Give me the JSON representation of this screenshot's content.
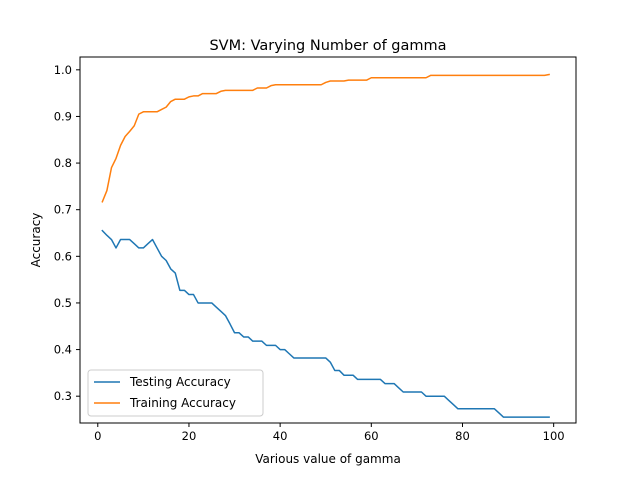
{
  "chart_data": {
    "type": "line",
    "title": "SVM: Varying Number of gamma",
    "xlabel": "Various value of gamma",
    "ylabel": "Accuracy",
    "xlim": [
      -3.9,
      104.9
    ],
    "ylim": [
      0.2425,
      1.0275
    ],
    "xticks": [
      0,
      20,
      40,
      60,
      80,
      100
    ],
    "yticks": [
      0.3,
      0.4,
      0.5,
      0.6,
      0.7,
      0.8,
      0.9,
      1.0
    ],
    "xtick_labels": [
      "0",
      "20",
      "40",
      "60",
      "80",
      "100"
    ],
    "ytick_labels": [
      "0.3",
      "0.4",
      "0.5",
      "0.6",
      "0.7",
      "0.8",
      "0.9",
      "1.0"
    ],
    "grid": false,
    "legend_position": "lower-left",
    "series": [
      {
        "name": "Testing Accuracy",
        "color": "#1f77b4",
        "x": [
          1,
          2,
          3,
          4,
          5,
          6,
          7,
          8,
          9,
          10,
          11,
          12,
          13,
          14,
          15,
          16,
          17,
          18,
          19,
          20,
          21,
          22,
          23,
          24,
          25,
          26,
          27,
          28,
          29,
          30,
          31,
          32,
          33,
          34,
          35,
          36,
          37,
          38,
          39,
          40,
          41,
          42,
          43,
          44,
          45,
          46,
          47,
          48,
          49,
          50,
          51,
          52,
          53,
          54,
          55,
          56,
          57,
          58,
          59,
          60,
          61,
          62,
          63,
          64,
          65,
          66,
          67,
          68,
          69,
          70,
          71,
          72,
          73,
          74,
          75,
          76,
          77,
          78,
          79,
          80,
          81,
          82,
          83,
          84,
          85,
          86,
          87,
          88,
          89,
          90,
          91,
          92,
          93,
          94,
          95,
          96,
          97,
          98,
          99
        ],
        "values": [
          0.655,
          0.645,
          0.636,
          0.618,
          0.636,
          0.636,
          0.636,
          0.627,
          0.618,
          0.618,
          0.627,
          0.636,
          0.618,
          0.6,
          0.591,
          0.573,
          0.564,
          0.527,
          0.527,
          0.518,
          0.518,
          0.5,
          0.5,
          0.5,
          0.5,
          0.491,
          0.482,
          0.473,
          0.455,
          0.436,
          0.436,
          0.427,
          0.427,
          0.418,
          0.418,
          0.418,
          0.409,
          0.409,
          0.409,
          0.4,
          0.4,
          0.391,
          0.382,
          0.382,
          0.382,
          0.382,
          0.382,
          0.382,
          0.382,
          0.382,
          0.373,
          0.355,
          0.355,
          0.345,
          0.345,
          0.345,
          0.336,
          0.336,
          0.336,
          0.336,
          0.336,
          0.336,
          0.327,
          0.327,
          0.327,
          0.318,
          0.309,
          0.309,
          0.309,
          0.309,
          0.309,
          0.3,
          0.3,
          0.3,
          0.3,
          0.3,
          0.291,
          0.282,
          0.273,
          0.273,
          0.273,
          0.273,
          0.273,
          0.273,
          0.273,
          0.273,
          0.273,
          0.264,
          0.255,
          0.255,
          0.255,
          0.255,
          0.255,
          0.255,
          0.255,
          0.255,
          0.255,
          0.255,
          0.255
        ]
      },
      {
        "name": "Training Accuracy",
        "color": "#ff7f0e",
        "x": [
          1,
          2,
          3,
          4,
          5,
          6,
          7,
          8,
          9,
          10,
          11,
          12,
          13,
          14,
          15,
          16,
          17,
          18,
          19,
          20,
          21,
          22,
          23,
          24,
          25,
          26,
          27,
          28,
          29,
          30,
          31,
          32,
          33,
          34,
          35,
          36,
          37,
          38,
          39,
          40,
          41,
          42,
          43,
          44,
          45,
          46,
          47,
          48,
          49,
          50,
          51,
          52,
          53,
          54,
          55,
          56,
          57,
          58,
          59,
          60,
          61,
          62,
          63,
          64,
          65,
          66,
          67,
          68,
          69,
          70,
          71,
          72,
          73,
          74,
          75,
          76,
          77,
          78,
          79,
          80,
          81,
          82,
          83,
          84,
          85,
          86,
          87,
          88,
          89,
          90,
          91,
          92,
          93,
          94,
          95,
          96,
          97,
          98,
          99
        ],
        "values": [
          0.717,
          0.741,
          0.79,
          0.81,
          0.838,
          0.857,
          0.868,
          0.88,
          0.905,
          0.91,
          0.91,
          0.91,
          0.91,
          0.915,
          0.92,
          0.932,
          0.937,
          0.937,
          0.937,
          0.942,
          0.944,
          0.944,
          0.949,
          0.949,
          0.949,
          0.949,
          0.954,
          0.956,
          0.956,
          0.956,
          0.956,
          0.956,
          0.956,
          0.956,
          0.961,
          0.961,
          0.961,
          0.966,
          0.968,
          0.968,
          0.968,
          0.968,
          0.968,
          0.968,
          0.968,
          0.968,
          0.968,
          0.968,
          0.968,
          0.973,
          0.976,
          0.976,
          0.976,
          0.976,
          0.978,
          0.978,
          0.978,
          0.978,
          0.978,
          0.983,
          0.983,
          0.983,
          0.983,
          0.983,
          0.983,
          0.983,
          0.983,
          0.983,
          0.983,
          0.983,
          0.983,
          0.983,
          0.988,
          0.988,
          0.988,
          0.988,
          0.988,
          0.988,
          0.988,
          0.988,
          0.988,
          0.988,
          0.988,
          0.988,
          0.988,
          0.988,
          0.988,
          0.988,
          0.988,
          0.988,
          0.988,
          0.988,
          0.988,
          0.988,
          0.988,
          0.988,
          0.988,
          0.988,
          0.99
        ]
      }
    ]
  }
}
